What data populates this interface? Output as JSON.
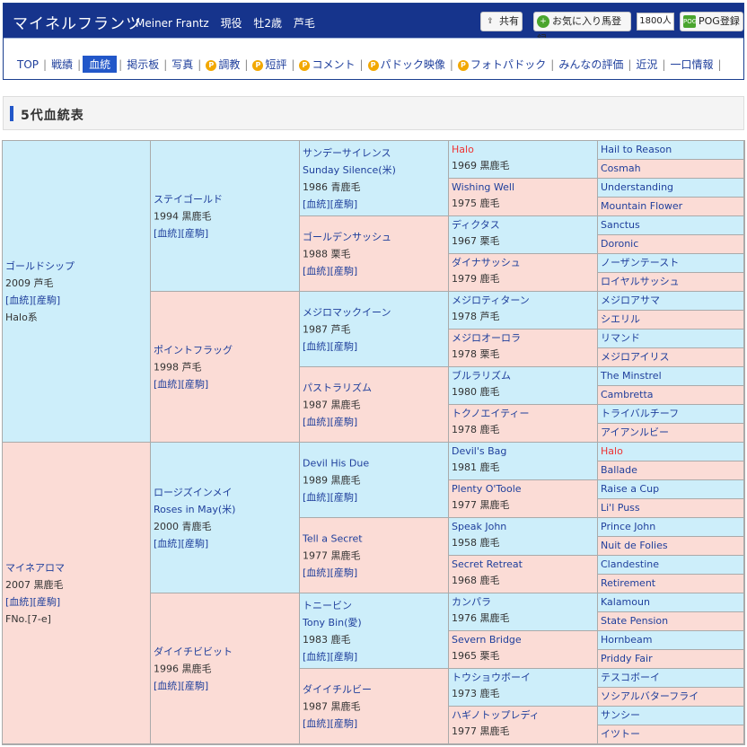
{
  "header": {
    "horse_name": "マイネルフランツ",
    "horse_name_en": "Meiner Frantz",
    "status": "現役",
    "sex_age": "牡2歳",
    "coat": "芦毛",
    "share_label": "共有",
    "fav_label": "お気に入り馬登録",
    "fav_count": "1800人",
    "pog_label": "POG登録"
  },
  "nav": [
    "TOP",
    "戦績",
    "血統",
    "掲示板",
    "写真",
    "調教",
    "短評",
    "コメント",
    "パドック映像",
    "フォトパドック",
    "みんなの評価",
    "近況",
    "一口情報"
  ],
  "nav_premium": [
    false,
    false,
    false,
    false,
    false,
    true,
    true,
    true,
    true,
    true,
    false,
    false,
    false
  ],
  "nav_active": 2,
  "section_title": "5代血統表",
  "pedigree": {
    "gen1": [
      {
        "name": "ゴールドシップ",
        "year": "2009 芦毛",
        "links": "[血統][産駒]",
        "extra": "Halo系",
        "sex": "m"
      },
      {
        "name": "マイネアロマ",
        "year": "2007 黒鹿毛",
        "links": "[血統][産駒]",
        "extra": "FNo.[7-e]",
        "sex": "f"
      }
    ],
    "gen2": [
      {
        "name": "ステイゴールド",
        "year": "1994 黒鹿毛",
        "links": "[血統][産駒]",
        "sex": "m"
      },
      {
        "name": "ポイントフラッグ",
        "year": "1998 芦毛",
        "links": "[血統][産駒]",
        "sex": "f"
      },
      {
        "name": "ロージズインメイ",
        "ename": "Roses in May(米)",
        "year": "2000 青鹿毛",
        "links": "[血統][産駒]",
        "sex": "m"
      },
      {
        "name": "ダイイチビビット",
        "year": "1996 黒鹿毛",
        "links": "[血統][産駒]",
        "sex": "f"
      }
    ],
    "gen3": [
      {
        "name": "サンデーサイレンス",
        "ename": "Sunday Silence(米)",
        "year": "1986 青鹿毛",
        "links": "[血統][産駒]",
        "sex": "m"
      },
      {
        "name": "ゴールデンサッシュ",
        "year": "1988 栗毛",
        "links": "[血統][産駒]",
        "sex": "f"
      },
      {
        "name": "メジロマックイーン",
        "year": "1987 芦毛",
        "links": "[血統][産駒]",
        "sex": "m"
      },
      {
        "name": "パストラリズム",
        "year": "1987 黒鹿毛",
        "links": "[血統][産駒]",
        "sex": "f"
      },
      {
        "name": "Devil His Due",
        "year": "1989 黒鹿毛",
        "links": "[血統][産駒]",
        "sex": "m"
      },
      {
        "name": "Tell a Secret",
        "year": "1977 黒鹿毛",
        "links": "[血統][産駒]",
        "sex": "f"
      },
      {
        "name": "トニービン",
        "ename": "Tony Bin(愛)",
        "year": "1983 鹿毛",
        "links": "[血統][産駒]",
        "sex": "m"
      },
      {
        "name": "ダイイチルビー",
        "year": "1987 黒鹿毛",
        "links": "[血統][産駒]",
        "sex": "f"
      }
    ],
    "gen4": [
      {
        "name": "Halo",
        "year": "1969 黒鹿毛",
        "sex": "m",
        "red": true
      },
      {
        "name": "Wishing Well",
        "year": "1975 鹿毛",
        "sex": "f"
      },
      {
        "name": "ディクタス",
        "year": "1967 栗毛",
        "sex": "m"
      },
      {
        "name": "ダイナサッシュ",
        "year": "1979 鹿毛",
        "sex": "f"
      },
      {
        "name": "メジロティターン",
        "year": "1978 芦毛",
        "sex": "m"
      },
      {
        "name": "メジロオーロラ",
        "year": "1978 栗毛",
        "sex": "f"
      },
      {
        "name": "ブルラリズム",
        "year": "1980 鹿毛",
        "sex": "m"
      },
      {
        "name": "トクノエイティー",
        "year": "1978 鹿毛",
        "sex": "f"
      },
      {
        "name": "Devil's Bag",
        "year": "1981 鹿毛",
        "sex": "m"
      },
      {
        "name": "Plenty O'Toole",
        "year": "1977 黒鹿毛",
        "sex": "f"
      },
      {
        "name": "Speak John",
        "year": "1958 鹿毛",
        "sex": "m"
      },
      {
        "name": "Secret Retreat",
        "year": "1968 鹿毛",
        "sex": "f"
      },
      {
        "name": "カンパラ",
        "year": "1976 黒鹿毛",
        "sex": "m"
      },
      {
        "name": "Severn Bridge",
        "year": "1965 栗毛",
        "sex": "f"
      },
      {
        "name": "トウショウボーイ",
        "year": "1973 鹿毛",
        "sex": "m"
      },
      {
        "name": "ハギノトップレディ",
        "year": "1977 黒鹿毛",
        "sex": "f"
      }
    ],
    "gen5": [
      {
        "name": "Hail to Reason",
        "sex": "m"
      },
      {
        "name": "Cosmah",
        "sex": "f"
      },
      {
        "name": "Understanding",
        "sex": "m"
      },
      {
        "name": "Mountain Flower",
        "sex": "f"
      },
      {
        "name": "Sanctus",
        "sex": "m"
      },
      {
        "name": "Doronic",
        "sex": "f"
      },
      {
        "name": "ノーザンテースト",
        "sex": "m"
      },
      {
        "name": "ロイヤルサッシュ",
        "sex": "f"
      },
      {
        "name": "メジロアサマ",
        "sex": "m"
      },
      {
        "name": "シエリル",
        "sex": "f"
      },
      {
        "name": "リマンド",
        "sex": "m"
      },
      {
        "name": "メジロアイリス",
        "sex": "f"
      },
      {
        "name": "The Minstrel",
        "sex": "m"
      },
      {
        "name": "Cambretta",
        "sex": "f"
      },
      {
        "name": "トライバルチーフ",
        "sex": "m"
      },
      {
        "name": "アイアンルビー",
        "sex": "f"
      },
      {
        "name": "Halo",
        "sex": "m",
        "red": true
      },
      {
        "name": "Ballade",
        "sex": "f"
      },
      {
        "name": "Raise a Cup",
        "sex": "m"
      },
      {
        "name": "Li'l Puss",
        "sex": "f"
      },
      {
        "name": "Prince John",
        "sex": "m"
      },
      {
        "name": "Nuit de Folies",
        "sex": "f"
      },
      {
        "name": "Clandestine",
        "sex": "m"
      },
      {
        "name": "Retirement",
        "sex": "f"
      },
      {
        "name": "Kalamoun",
        "sex": "m"
      },
      {
        "name": "State Pension",
        "sex": "f"
      },
      {
        "name": "Hornbeam",
        "sex": "m"
      },
      {
        "name": "Priddy Fair",
        "sex": "f"
      },
      {
        "name": "テスコボーイ",
        "sex": "m"
      },
      {
        "name": "ソシアルバターフライ",
        "sex": "f"
      },
      {
        "name": "サンシー",
        "sex": "m"
      },
      {
        "name": "イツトー",
        "sex": "f"
      }
    ]
  }
}
